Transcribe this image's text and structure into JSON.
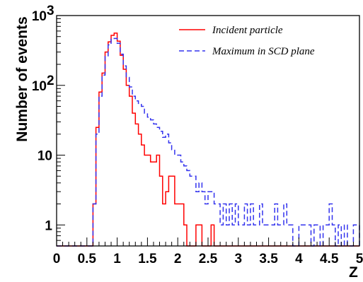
{
  "chart_data": {
    "type": "line",
    "title": "",
    "xlabel": "Z",
    "ylabel": "Number of events",
    "xlim": [
      0,
      5
    ],
    "ylim": [
      0.5,
      1000
    ],
    "yscale": "log",
    "grid": false,
    "legend_position": "top-right",
    "x_ticks": [
      {
        "value": 0,
        "label": "0"
      },
      {
        "value": 0.5,
        "label": "0.5"
      },
      {
        "value": 1,
        "label": "1"
      },
      {
        "value": 1.5,
        "label": "1.5"
      },
      {
        "value": 2,
        "label": "2"
      },
      {
        "value": 2.5,
        "label": "2.5"
      },
      {
        "value": 3,
        "label": "3"
      },
      {
        "value": 3.5,
        "label": "3.5"
      },
      {
        "value": 4,
        "label": "4"
      },
      {
        "value": 4.5,
        "label": "4.5"
      },
      {
        "value": 5,
        "label": "5"
      }
    ],
    "y_ticks": [
      {
        "value": 1,
        "base": "1",
        "exp": ""
      },
      {
        "value": 10,
        "base": "10",
        "exp": ""
      },
      {
        "value": 100,
        "base": "10",
        "exp": "2"
      },
      {
        "value": 1000,
        "base": "10",
        "exp": "3"
      }
    ],
    "series": [
      {
        "name": "Incident particle",
        "color": "#ff0000",
        "dash": "solid",
        "x": [
          0.6,
          0.65,
          0.7,
          0.75,
          0.8,
          0.85,
          0.9,
          0.95,
          1.0,
          1.05,
          1.1,
          1.15,
          1.2,
          1.25,
          1.3,
          1.35,
          1.4,
          1.45,
          1.5,
          1.55,
          1.6,
          1.65,
          1.7,
          1.75,
          1.8,
          1.85,
          1.9,
          1.95,
          2.0,
          2.05,
          2.1,
          2.15,
          2.2,
          2.25,
          2.3,
          2.35,
          2.4,
          2.45,
          2.5,
          2.55,
          2.6,
          2.65
        ],
        "values": [
          2,
          25,
          80,
          150,
          300,
          420,
          520,
          560,
          430,
          270,
          170,
          100,
          70,
          40,
          28,
          20,
          14,
          10,
          10,
          8,
          8,
          10,
          5,
          2,
          3,
          5,
          5,
          2,
          2,
          2,
          1,
          0,
          0,
          0,
          1,
          1,
          0,
          0,
          0,
          1,
          0,
          0
        ]
      },
      {
        "name": "Maximum in SCD plane",
        "color": "#3333ee",
        "dash": "dashed",
        "x": [
          0.6,
          0.65,
          0.7,
          0.75,
          0.8,
          0.85,
          0.9,
          0.95,
          1.0,
          1.05,
          1.1,
          1.15,
          1.2,
          1.25,
          1.3,
          1.35,
          1.4,
          1.45,
          1.5,
          1.55,
          1.6,
          1.65,
          1.7,
          1.75,
          1.8,
          1.85,
          1.9,
          1.95,
          2.0,
          2.05,
          2.1,
          2.15,
          2.2,
          2.25,
          2.3,
          2.35,
          2.4,
          2.45,
          2.5,
          2.55,
          2.6,
          2.65,
          2.7,
          2.75,
          2.8,
          2.85,
          2.9,
          2.95,
          3.0,
          3.05,
          3.1,
          3.15,
          3.2,
          3.25,
          3.3,
          3.35,
          3.4,
          3.45,
          3.5,
          3.55,
          3.6,
          3.65,
          3.7,
          3.75,
          3.8,
          3.85,
          3.9,
          3.95,
          4.0,
          4.05,
          4.1,
          4.15,
          4.2,
          4.25,
          4.3,
          4.35,
          4.4,
          4.45,
          4.5,
          4.55,
          4.6,
          4.65,
          4.7,
          4.75,
          4.8,
          4.85,
          4.9,
          4.95
        ],
        "values": [
          2,
          20,
          70,
          140,
          260,
          380,
          460,
          470,
          400,
          280,
          190,
          130,
          95,
          70,
          60,
          55,
          50,
          40,
          35,
          32,
          28,
          25,
          22,
          18,
          20,
          15,
          12,
          10,
          10,
          8,
          7,
          6,
          5,
          5,
          3,
          4,
          3,
          2,
          3,
          3,
          2,
          2,
          1,
          2,
          1,
          2,
          1,
          2,
          1,
          1,
          2,
          1,
          2,
          1,
          1,
          2,
          1,
          1,
          1,
          1,
          2,
          1,
          1,
          2,
          1,
          1,
          0,
          0,
          1,
          1,
          1,
          1,
          0,
          1,
          1,
          0,
          1,
          1,
          2,
          1,
          0,
          1,
          0,
          1,
          0,
          0,
          1,
          1
        ]
      }
    ]
  }
}
